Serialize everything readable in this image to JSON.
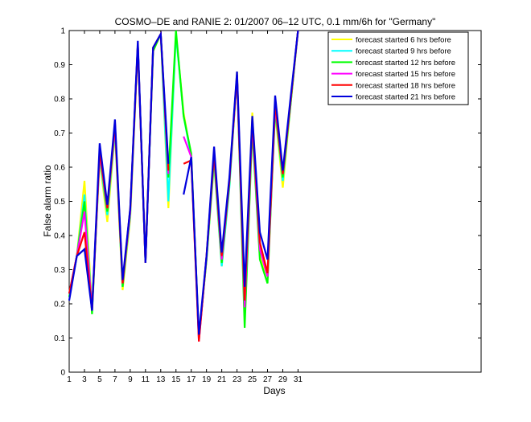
{
  "chart_data": {
    "type": "line",
    "title": "COSMO–DE and RANIE 2: 01/2007 06–12 UTC, 0.1 mm/6h for \"Germany\"",
    "xlabel": "Days",
    "ylabel": "False alarm ratio",
    "xlim": [
      1,
      55
    ],
    "ylim": [
      0,
      1
    ],
    "xticks": [
      1,
      3,
      5,
      7,
      9,
      11,
      13,
      15,
      17,
      19,
      21,
      23,
      25,
      27,
      29,
      31
    ],
    "yticks": [
      0,
      0.1,
      0.2,
      0.3,
      0.4,
      0.5,
      0.6,
      0.7,
      0.8,
      0.9,
      1
    ],
    "x": [
      1,
      2,
      3,
      4,
      5,
      6,
      7,
      8,
      9,
      10,
      11,
      12,
      13,
      14,
      15,
      16,
      17,
      18,
      19,
      20,
      21,
      22,
      23,
      24,
      25,
      26,
      27,
      28,
      29,
      30,
      31
    ],
    "legend_position": "top-right",
    "grid": false,
    "series": [
      {
        "name": "forecast started 6 hrs before",
        "color": "#ffff00",
        "values": [
          0.23,
          0.34,
          0.56,
          0.19,
          0.62,
          0.44,
          0.7,
          0.24,
          0.45,
          0.95,
          0.33,
          0.94,
          0.99,
          0.48,
          0.99,
          0.76,
          0.63,
          0.1,
          0.33,
          0.61,
          0.31,
          0.55,
          0.88,
          0.17,
          0.76,
          0.34,
          0.28,
          0.76,
          0.54,
          0.78,
          1.0
        ]
      },
      {
        "name": "forecast started 9 hrs before",
        "color": "#00ffff",
        "values": [
          0.22,
          0.34,
          0.52,
          0.18,
          0.63,
          0.46,
          0.71,
          0.25,
          0.46,
          0.96,
          0.32,
          0.95,
          0.99,
          0.5,
          0.99,
          0.75,
          0.63,
          0.1,
          0.33,
          0.62,
          0.31,
          0.54,
          0.87,
          0.16,
          0.74,
          0.36,
          0.28,
          0.77,
          0.56,
          0.78,
          1.0
        ]
      },
      {
        "name": "forecast started 12 hrs before",
        "color": "#00ff00",
        "values": [
          0.22,
          0.34,
          0.5,
          0.17,
          0.64,
          0.47,
          0.72,
          0.25,
          0.47,
          0.96,
          0.32,
          0.94,
          0.99,
          0.57,
          1.0,
          0.75,
          0.64,
          0.1,
          0.33,
          0.63,
          0.32,
          0.55,
          0.87,
          0.13,
          0.71,
          0.33,
          0.26,
          0.77,
          0.57,
          0.78,
          1.0
        ]
      },
      {
        "name": "forecast started 15 hrs before",
        "color": "#ff00ff",
        "values": [
          0.23,
          0.34,
          0.47,
          0.18,
          0.64,
          0.48,
          0.72,
          0.26,
          0.47,
          0.96,
          0.32,
          0.95,
          0.99,
          0.58,
          null,
          0.69,
          0.63,
          0.09,
          0.34,
          0.64,
          0.33,
          0.56,
          0.87,
          0.19,
          0.73,
          0.36,
          0.28,
          0.78,
          0.58,
          0.79,
          1.0
        ]
      },
      {
        "name": "forecast started 18 hrs before",
        "color": "#ff0000",
        "values": [
          0.23,
          0.34,
          0.41,
          0.18,
          0.65,
          0.48,
          0.73,
          0.26,
          0.48,
          0.96,
          0.32,
          0.95,
          0.99,
          0.59,
          null,
          0.61,
          0.62,
          0.09,
          0.34,
          0.64,
          0.34,
          0.56,
          0.87,
          0.21,
          0.74,
          0.38,
          0.29,
          0.79,
          0.58,
          0.79,
          1.0
        ]
      },
      {
        "name": "forecast started 21 hrs before",
        "color": "#0000dd",
        "values": [
          0.21,
          0.34,
          0.36,
          0.18,
          0.67,
          0.49,
          0.74,
          0.27,
          0.48,
          0.97,
          0.32,
          0.95,
          0.99,
          0.61,
          null,
          0.52,
          0.63,
          0.11,
          0.34,
          0.66,
          0.35,
          0.57,
          0.88,
          0.25,
          0.75,
          0.41,
          0.33,
          0.81,
          0.59,
          0.8,
          1.0
        ]
      }
    ]
  }
}
